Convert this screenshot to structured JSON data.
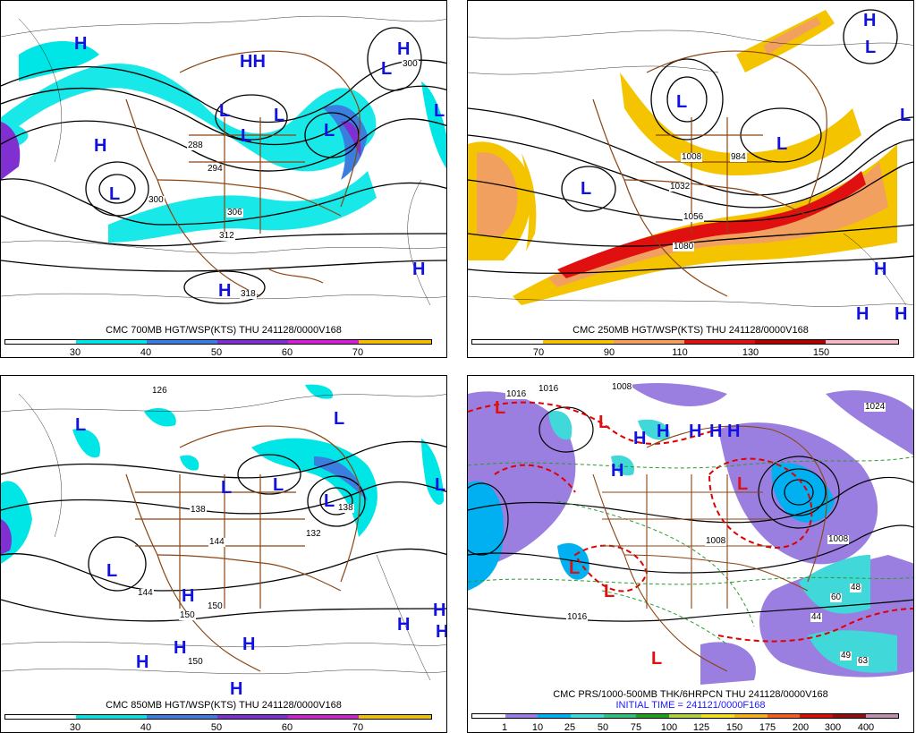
{
  "panels": [
    {
      "id": "p700",
      "caption": "CMC 700MB HGT/WSP(KTS) THU 241128/0000V168",
      "ticks": [
        "30",
        "40",
        "50",
        "60",
        "70"
      ],
      "colors": {
        "c1": "#00e5e5",
        "c2": "#3a7fe0",
        "c3": "#8030d0",
        "c4": "#d020d0",
        "c5": "#f0c000"
      },
      "highs": [
        "H",
        "H",
        "H",
        "HH",
        "H",
        "H"
      ],
      "lows": [
        "L",
        "L",
        "L",
        "L",
        "L",
        "L",
        "L"
      ],
      "contour_labels": [
        "300",
        "288",
        "294",
        "300",
        "306",
        "312",
        "318"
      ]
    },
    {
      "id": "p250",
      "caption": "CMC 250MB HGT/WSP(KTS) THU 241128/0000V168",
      "ticks": [
        "70",
        "90",
        "110",
        "130",
        "150"
      ],
      "colors": {
        "c1": "#f5c400",
        "c2": "#f2a060",
        "c3": "#e01010",
        "c4": "#b00000",
        "c5": "#f7b8c8"
      },
      "highs": [
        "H",
        "H",
        "H",
        "H"
      ],
      "lows": [
        "L",
        "L",
        "L",
        "L",
        "L"
      ],
      "contour_labels": [
        "1008",
        "984",
        "1032",
        "1056",
        "1080"
      ]
    },
    {
      "id": "p850",
      "caption": "CMC 850MB HGT/WSP(KTS) THU 241128/0000V168",
      "ticks": [
        "30",
        "40",
        "50",
        "60",
        "70"
      ],
      "colors": {
        "c1": "#00e5e5",
        "c2": "#3a7fe0",
        "c3": "#8030d0",
        "c4": "#d020d0",
        "c5": "#f0c000"
      },
      "highs": [
        "H",
        "H",
        "H",
        "H",
        "H",
        "H",
        "H",
        "H"
      ],
      "lows": [
        "L",
        "L",
        "L",
        "L",
        "L",
        "L",
        "L"
      ],
      "contour_labels": [
        "126",
        "138",
        "144",
        "150",
        "150",
        "138",
        "144",
        "150",
        "132"
      ]
    },
    {
      "id": "pprs",
      "caption": "CMC PRS/1000-500MB THK/6HRPCN THU 241128/0000V168",
      "caption2": "INITIAL TIME = 241121/0000F168",
      "ticks": [
        "1",
        "10",
        "25",
        "50",
        "75",
        "100",
        "125",
        "150",
        "175",
        "200",
        "300",
        "400"
      ],
      "colors": {
        "c1": "#9a7fe0",
        "c2": "#00b0f0",
        "c3": "#40d8d8",
        "c4": "#f0f0f0",
        "c5": "#e00000"
      },
      "highs": [
        "H",
        "H",
        "H",
        "H",
        "H",
        "H"
      ],
      "lows": [
        "L",
        "L",
        "L",
        "L",
        "L",
        "L"
      ],
      "contour_labels": [
        "1016",
        "1016",
        "1008",
        "1024",
        "1008",
        "1016",
        "1008",
        "48",
        "49",
        "63",
        "60",
        "44"
      ]
    }
  ]
}
